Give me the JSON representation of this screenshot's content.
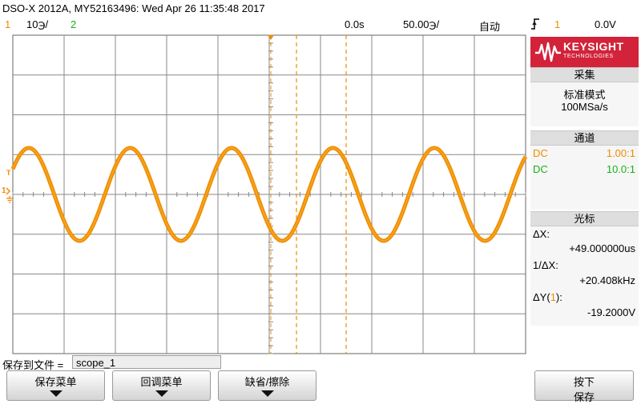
{
  "title": "DSO-X 2012A, MY52163496: Wed Apr 26 11:35:48 2017",
  "header": {
    "ch1_num": "1",
    "ch1_scale": "10℈/",
    "ch2_num": "2",
    "time_pos": "0.0s",
    "time_scale": "50.00℈/",
    "trigger_mode": "自动",
    "trigger_icon": "trigger-edge-icon",
    "trigger_source": "1",
    "trigger_level": "0.0V"
  },
  "left_marker": {
    "t": "T",
    "one": "1"
  },
  "panel": {
    "logo_text": "KEYSIGHT",
    "logo_sub": "TECHNOLOGIES",
    "acq_head": "采集",
    "acq_mode": "标准模式",
    "acq_rate": "100MSa/s",
    "chan_head": "通道",
    "ch1_coupling": "DC",
    "ch1_probe": "1.00:1",
    "ch2_coupling": "DC",
    "ch2_probe": "10.0:1",
    "cursor_head": "光标",
    "dx_label": "ΔX:",
    "dx_value": "+49.000000us",
    "inv_dx_label": "1/ΔX:",
    "inv_dx_value": "+20.408kHz",
    "dy_prefix": "ΔY(",
    "dy_ch": "1",
    "dy_suffix": "):",
    "dy_value": "-19.2000V"
  },
  "bottom": {
    "save_label": "保存到文件 =",
    "file_name": "scope_1",
    "softkeys": [
      "保存菜单",
      "回调菜单",
      "缺省/擦除"
    ],
    "press_top": "按下",
    "press_bottom": "保存"
  },
  "colors": {
    "ch1": "#ee8c00",
    "ch2": "#17b017",
    "grid": "#888888",
    "accent": "#d2233a"
  }
}
